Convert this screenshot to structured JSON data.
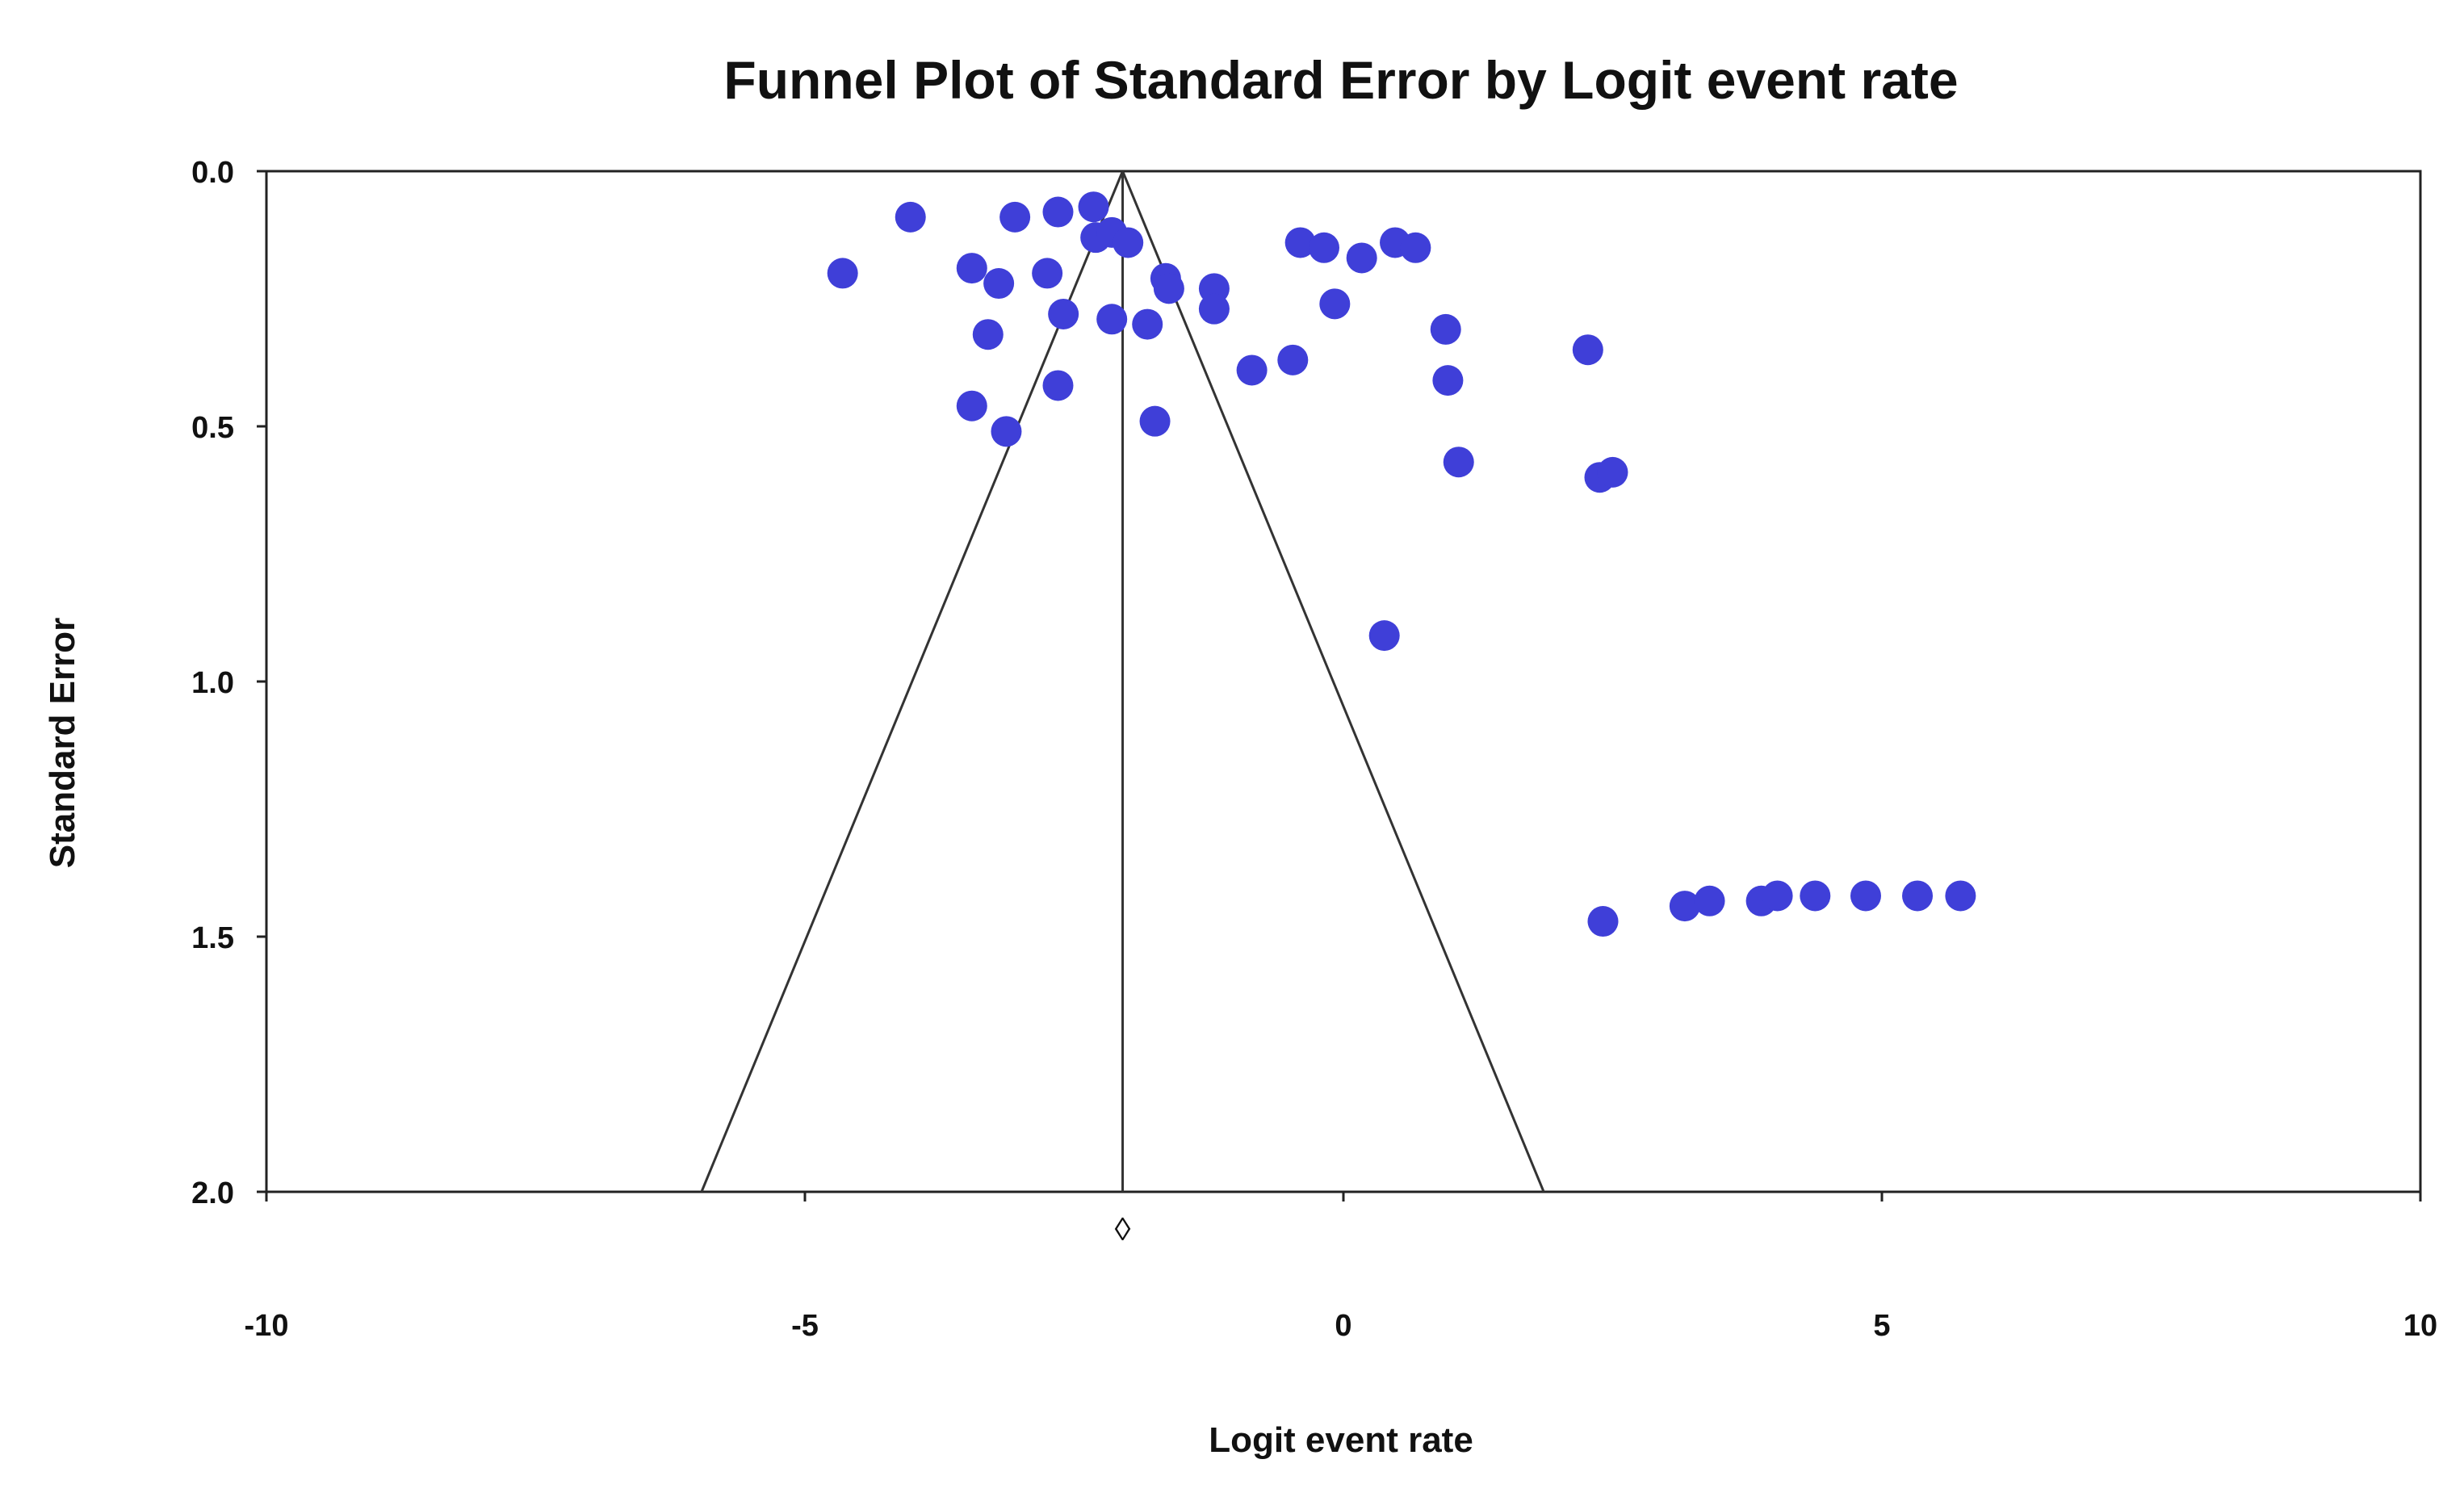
{
  "chart_data": {
    "type": "scatter",
    "title": "Funnel Plot of Standard Error by Logit event rate",
    "xlabel": "Logit event rate",
    "ylabel": "Standard Error",
    "xlim": [
      -10,
      10
    ],
    "ylim": [
      2.0,
      0.0
    ],
    "y_axis_inverted": true,
    "x_ticks": [
      -10,
      -5,
      0,
      5,
      10
    ],
    "x_tick_labels": [
      "-10",
      "-5",
      "0",
      "5",
      "10"
    ],
    "y_ticks": [
      0.0,
      0.5,
      1.0,
      1.5,
      2.0
    ],
    "y_tick_labels": [
      "0.0",
      "0.5",
      "1.0",
      "1.5",
      "2.0"
    ],
    "grid": false,
    "legend": "none",
    "point_color": "#3F3FD8",
    "line_color": "#333333",
    "funnel": {
      "center": -2.05,
      "apex_se": 0.0,
      "bottom_se": 2.0,
      "bottom_left_x": -5.96,
      "bottom_right_x": 1.86
    },
    "mean_marker": {
      "symbol": "◊",
      "x": -2.05
    },
    "points": [
      {
        "x": -4.65,
        "y": 0.2
      },
      {
        "x": -4.02,
        "y": 0.09
      },
      {
        "x": -3.45,
        "y": 0.19
      },
      {
        "x": -3.2,
        "y": 0.22
      },
      {
        "x": -3.3,
        "y": 0.32
      },
      {
        "x": -3.45,
        "y": 0.46
      },
      {
        "x": -3.13,
        "y": 0.51
      },
      {
        "x": -3.05,
        "y": 0.09
      },
      {
        "x": -2.75,
        "y": 0.2
      },
      {
        "x": -2.65,
        "y": 0.08
      },
      {
        "x": -2.6,
        "y": 0.28
      },
      {
        "x": -2.65,
        "y": 0.42
      },
      {
        "x": -2.32,
        "y": 0.07
      },
      {
        "x": -2.3,
        "y": 0.13
      },
      {
        "x": -2.15,
        "y": 0.12
      },
      {
        "x": -2.0,
        "y": 0.14
      },
      {
        "x": -2.15,
        "y": 0.29
      },
      {
        "x": -1.82,
        "y": 0.3
      },
      {
        "x": -1.75,
        "y": 0.49
      },
      {
        "x": -1.65,
        "y": 0.21
      },
      {
        "x": -1.62,
        "y": 0.23
      },
      {
        "x": -1.2,
        "y": 0.23
      },
      {
        "x": -1.2,
        "y": 0.27
      },
      {
        "x": -0.85,
        "y": 0.39
      },
      {
        "x": -0.47,
        "y": 0.37
      },
      {
        "x": -0.4,
        "y": 0.14
      },
      {
        "x": -0.18,
        "y": 0.15
      },
      {
        "x": -0.08,
        "y": 0.26
      },
      {
        "x": 0.17,
        "y": 0.17
      },
      {
        "x": 0.48,
        "y": 0.14
      },
      {
        "x": 0.67,
        "y": 0.15
      },
      {
        "x": 0.38,
        "y": 0.91
      },
      {
        "x": 0.95,
        "y": 0.31
      },
      {
        "x": 0.97,
        "y": 0.41
      },
      {
        "x": 1.07,
        "y": 0.57
      },
      {
        "x": 2.27,
        "y": 0.35
      },
      {
        "x": 2.38,
        "y": 0.6
      },
      {
        "x": 2.5,
        "y": 0.59
      },
      {
        "x": 2.41,
        "y": 1.47
      },
      {
        "x": 3.17,
        "y": 1.44
      },
      {
        "x": 3.4,
        "y": 1.43
      },
      {
        "x": 3.88,
        "y": 1.43
      },
      {
        "x": 4.03,
        "y": 1.42
      },
      {
        "x": 4.38,
        "y": 1.42
      },
      {
        "x": 4.85,
        "y": 1.42
      },
      {
        "x": 5.33,
        "y": 1.42
      },
      {
        "x": 5.73,
        "y": 1.42
      }
    ]
  }
}
